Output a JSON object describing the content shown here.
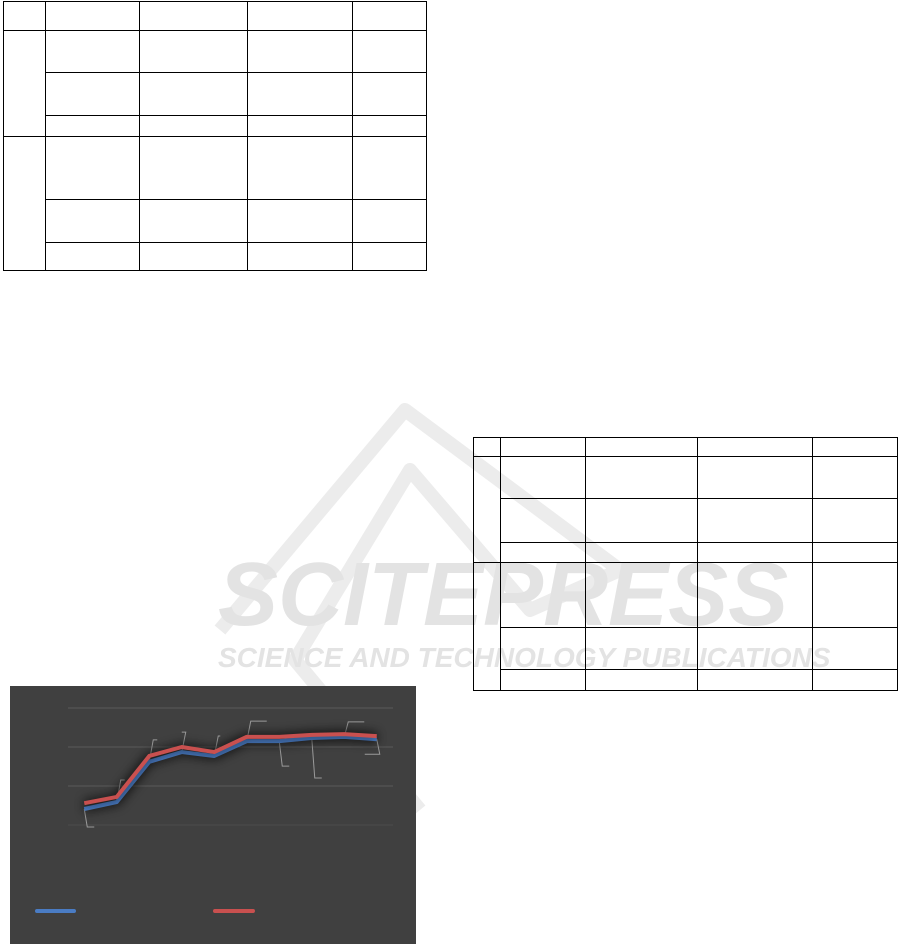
{
  "tables": [
    {
      "rows": 7,
      "cols": 5
    },
    {
      "rows": 7,
      "cols": 5
    }
  ],
  "watermark": {
    "title": "SCITEPRESS",
    "subtitle": "SCIENCE AND TECHNOLOGY PUBLICATIONS",
    "color": "#e3e3e3"
  },
  "chart_data": {
    "type": "line",
    "x": [
      1,
      2,
      3,
      4,
      5,
      6,
      7,
      8,
      9,
      10
    ],
    "ylim": [
      0,
      4
    ],
    "grid": true,
    "legend": "bottom",
    "background": "#404040",
    "series": [
      {
        "color": "#4a7cc4",
        "values": [
          1.41,
          1.59,
          2.62,
          2.87,
          2.77,
          3.15,
          3.15,
          3.23,
          3.26,
          3.2
        ]
      },
      {
        "color": "#c9504f",
        "values": [
          1.56,
          1.72,
          2.77,
          3.0,
          2.87,
          3.26,
          3.26,
          3.31,
          3.33,
          3.28
        ]
      }
    ]
  }
}
